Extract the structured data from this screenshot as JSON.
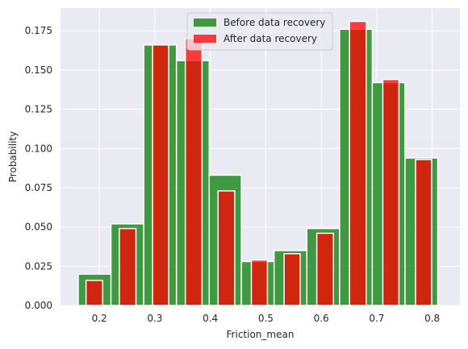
{
  "colors": {
    "background": "#eaeaf2",
    "grid": "#ffffff",
    "before": "#228b22",
    "after": "#ff0000"
  },
  "chart_data": {
    "type": "bar",
    "xlabel": "Friction_mean",
    "ylabel": "Probability",
    "xlim": [
      0.13,
      0.85
    ],
    "ylim": [
      0.0,
      0.1895
    ],
    "xticks": [
      "0.2",
      "0.3",
      "0.4",
      "0.5",
      "0.6",
      "0.7",
      "0.8"
    ],
    "yticks": [
      "0.000",
      "0.025",
      "0.050",
      "0.075",
      "0.100",
      "0.125",
      "0.150",
      "0.175"
    ],
    "grid": true,
    "legend_position": "top-center",
    "series": [
      {
        "name": "Before data recovery",
        "color": "#228b22",
        "opacity": 0.85,
        "bins": [
          {
            "x0": 0.162,
            "x1": 0.221,
            "value": 0.02
          },
          {
            "x0": 0.221,
            "x1": 0.28,
            "value": 0.052
          },
          {
            "x0": 0.28,
            "x1": 0.339,
            "value": 0.166
          },
          {
            "x0": 0.339,
            "x1": 0.398,
            "value": 0.156
          },
          {
            "x0": 0.398,
            "x1": 0.456,
            "value": 0.083
          },
          {
            "x0": 0.456,
            "x1": 0.515,
            "value": 0.028
          },
          {
            "x0": 0.515,
            "x1": 0.574,
            "value": 0.035
          },
          {
            "x0": 0.574,
            "x1": 0.633,
            "value": 0.049
          },
          {
            "x0": 0.633,
            "x1": 0.692,
            "value": 0.176
          },
          {
            "x0": 0.692,
            "x1": 0.751,
            "value": 0.142
          },
          {
            "x0": 0.751,
            "x1": 0.81,
            "value": 0.094
          }
        ]
      },
      {
        "name": "After data recovery",
        "color": "#ff0000",
        "opacity": 0.75,
        "bins": [
          {
            "x0": 0.176,
            "x1": 0.206,
            "value": 0.016
          },
          {
            "x0": 0.236,
            "x1": 0.266,
            "value": 0.049
          },
          {
            "x0": 0.296,
            "x1": 0.325,
            "value": 0.166
          },
          {
            "x0": 0.355,
            "x1": 0.385,
            "value": 0.17
          },
          {
            "x0": 0.414,
            "x1": 0.444,
            "value": 0.073
          },
          {
            "x0": 0.474,
            "x1": 0.503,
            "value": 0.029
          },
          {
            "x0": 0.533,
            "x1": 0.562,
            "value": 0.033
          },
          {
            "x0": 0.592,
            "x1": 0.622,
            "value": 0.046
          },
          {
            "x0": 0.651,
            "x1": 0.681,
            "value": 0.181
          },
          {
            "x0": 0.711,
            "x1": 0.74,
            "value": 0.144
          },
          {
            "x0": 0.77,
            "x1": 0.799,
            "value": 0.093
          }
        ]
      }
    ]
  }
}
